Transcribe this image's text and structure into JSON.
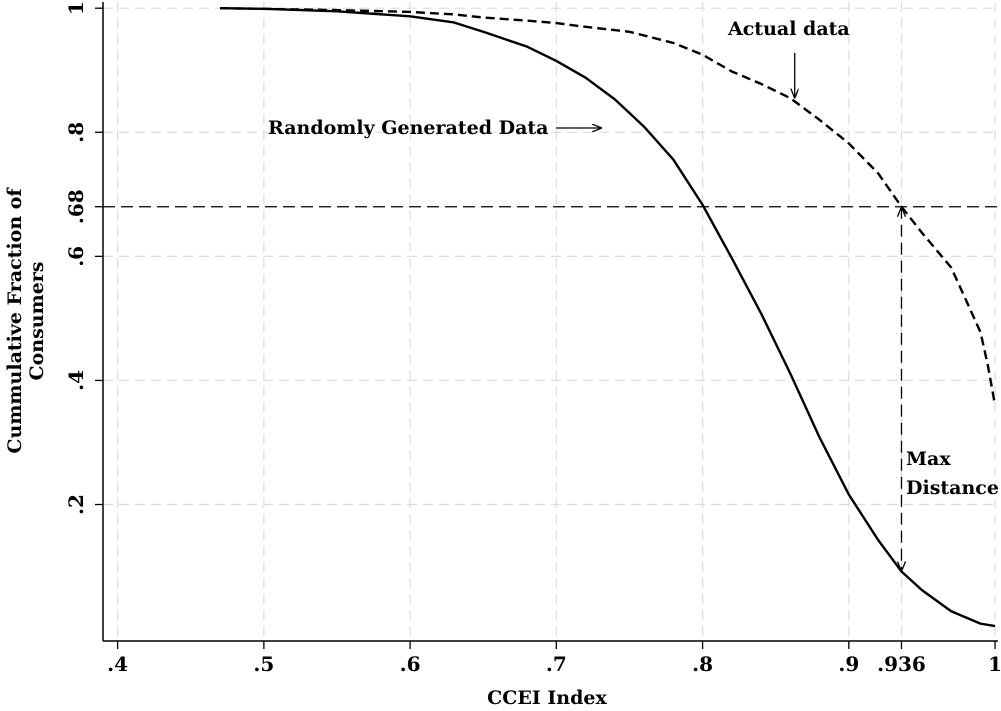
{
  "chart_data": {
    "type": "line",
    "xlabel": "CCEI Index",
    "ylabel": [
      "Cummulative Fraction of",
      "Consumers"
    ],
    "xlim": [
      0.39,
      1.002
    ],
    "ylim": [
      -0.02,
      1.01
    ],
    "grid": true,
    "x_ticks": [
      {
        "value": 0.4,
        "label": ".4"
      },
      {
        "value": 0.5,
        "label": ".5"
      },
      {
        "value": 0.6,
        "label": ".6"
      },
      {
        "value": 0.7,
        "label": ".7"
      },
      {
        "value": 0.8,
        "label": ".8"
      },
      {
        "value": 0.9,
        "label": ".9"
      },
      {
        "value": 0.936,
        "label": ".936"
      },
      {
        "value": 1.0,
        "label": "1"
      }
    ],
    "y_ticks": [
      {
        "value": 0.2,
        "label": ".2"
      },
      {
        "value": 0.4,
        "label": ".4"
      },
      {
        "value": 0.6,
        "label": ".6"
      },
      {
        "value": 0.68,
        "label": ".68"
      },
      {
        "value": 0.8,
        "label": ".8"
      },
      {
        "value": 1.0,
        "label": "1"
      }
    ],
    "series": [
      {
        "name": "Randomly Generated Data",
        "style": "solid",
        "x": [
          0.47,
          0.5,
          0.55,
          0.6,
          0.63,
          0.65,
          0.68,
          0.7,
          0.72,
          0.74,
          0.76,
          0.78,
          0.8,
          0.82,
          0.84,
          0.86,
          0.88,
          0.9,
          0.92,
          0.936,
          0.95,
          0.97,
          0.99,
          1.0
        ],
        "y": [
          1.0,
          0.999,
          0.995,
          0.987,
          0.977,
          0.962,
          0.938,
          0.915,
          0.888,
          0.853,
          0.809,
          0.756,
          0.683,
          0.597,
          0.508,
          0.411,
          0.308,
          0.216,
          0.143,
          0.092,
          0.062,
          0.028,
          0.008,
          0.004
        ]
      },
      {
        "name": "Actual data",
        "style": "dashed",
        "x": [
          0.47,
          0.5,
          0.55,
          0.6,
          0.63,
          0.65,
          0.68,
          0.7,
          0.72,
          0.75,
          0.78,
          0.8,
          0.82,
          0.84,
          0.86,
          0.88,
          0.9,
          0.92,
          0.936,
          0.95,
          0.97,
          0.98,
          0.99,
          0.995,
          1.0
        ],
        "y": [
          1.0,
          0.999,
          0.997,
          0.994,
          0.99,
          0.985,
          0.98,
          0.976,
          0.97,
          0.962,
          0.944,
          0.925,
          0.898,
          0.878,
          0.855,
          0.82,
          0.782,
          0.734,
          0.68,
          0.638,
          0.582,
          0.53,
          0.478,
          0.425,
          0.36
        ]
      }
    ],
    "reference_lines": [
      {
        "orientation": "horizontal",
        "value": 0.68,
        "style": "dashed"
      }
    ],
    "annotations": {
      "random_label": "Randomly Generated Data",
      "actual_label": "Actual data",
      "max_distance": [
        "Max",
        "Distance"
      ],
      "max_distance_at": {
        "x": 0.936,
        "y_from": 0.68,
        "y_to": 0.092
      },
      "random_arrow_to": {
        "x": 0.74,
        "y": 0.855
      },
      "actual_arrow_to": {
        "x": 0.863,
        "y": 0.85
      }
    }
  }
}
